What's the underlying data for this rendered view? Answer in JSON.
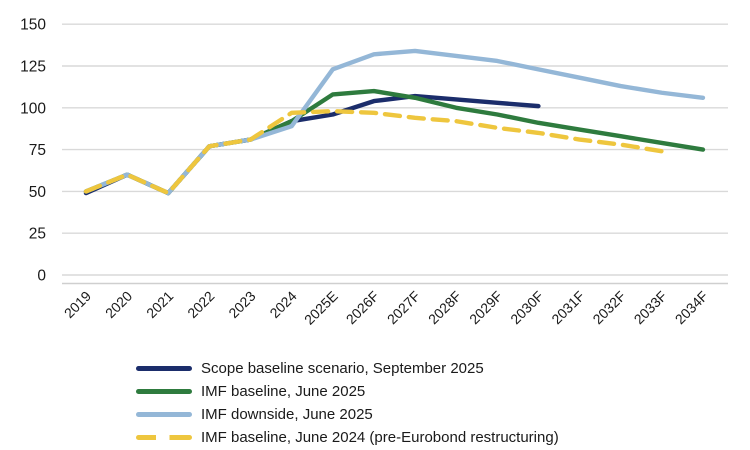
{
  "chart_data": {
    "type": "line",
    "title": "",
    "xlabel": "",
    "ylabel": "",
    "categories": [
      "2019",
      "2020",
      "2021",
      "2022",
      "2023",
      "2024",
      "2025E",
      "2026F",
      "2027F",
      "2028F",
      "2029F",
      "2030F",
      "2031F",
      "2032F",
      "2033F",
      "2034F"
    ],
    "y_ticks": [
      0,
      25,
      50,
      75,
      100,
      125,
      150
    ],
    "ylim": [
      0,
      150
    ],
    "grid": "horizontal",
    "legend_position": "bottom-left",
    "series": [
      {
        "name": "Scope baseline scenario, September 2025",
        "color": "#1b2d6b",
        "style": "solid",
        "values": [
          49,
          60,
          49,
          77,
          81,
          92,
          96,
          104,
          107,
          105,
          103,
          101,
          null,
          null,
          null,
          null
        ]
      },
      {
        "name": "IMF baseline, June 2025",
        "color": "#2e7b3e",
        "style": "solid",
        "values": [
          50,
          60,
          49,
          77,
          81,
          92,
          108,
          110,
          106,
          100,
          96,
          91,
          87,
          83,
          79,
          75
        ]
      },
      {
        "name": "IMF downside, June 2025",
        "color": "#94b7d7",
        "style": "solid",
        "values": [
          50,
          60,
          49,
          77,
          81,
          89,
          123,
          132,
          134,
          131,
          128,
          123,
          118,
          113,
          109,
          106
        ]
      },
      {
        "name": "IMF baseline, June 2024 (pre-Eurobond restructuring)",
        "color": "#eec63e",
        "style": "dashed",
        "values": [
          50,
          60,
          49,
          77,
          81,
          97,
          98,
          97,
          94,
          92,
          88,
          85,
          81,
          78,
          74,
          null
        ]
      }
    ]
  },
  "colors": {
    "grid": "#d9d9d9",
    "axis_line": "#cfcfcf",
    "text": "#1a1a1a",
    "background": "#ffffff"
  }
}
